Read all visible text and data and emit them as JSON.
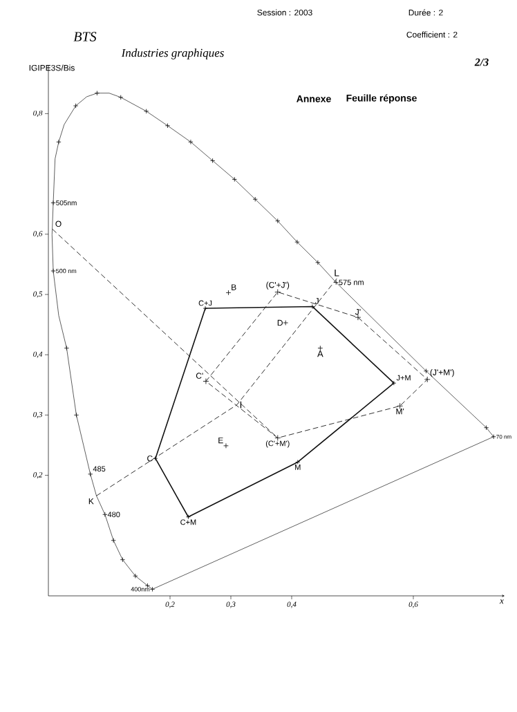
{
  "chart_data": {
    "type": "line",
    "title": "Annexe",
    "subtitle": "Feuille réponse",
    "xlabel": "x",
    "xlim": [
      0,
      0.75
    ],
    "ylim": [
      0,
      0.88
    ],
    "xticks": [
      {
        "value": 0.2,
        "label": "0,2"
      },
      {
        "value": 0.3,
        "label": "0,3"
      },
      {
        "value": 0.4,
        "label": "0,4"
      },
      {
        "value": 0.6,
        "label": "0,6"
      }
    ],
    "yticks": [
      {
        "value": 0.2,
        "label": "0,2"
      },
      {
        "value": 0.3,
        "label": "0,3"
      },
      {
        "value": 0.4,
        "label": "0,4"
      },
      {
        "value": 0.5,
        "label": "0,5"
      },
      {
        "value": 0.6,
        "label": "0,6"
      },
      {
        "value": 0.8,
        "label": "0,8"
      }
    ],
    "series": [
      {
        "type": "line",
        "color": "#1a1a1a",
        "line_style": "solid",
        "x": [
          0.171,
          0.163,
          0.143,
          0.122,
          0.107,
          0.093,
          0.079,
          0.069,
          0.046,
          0.03,
          0.017,
          0.008,
          0.006,
          0.008,
          0.011,
          0.017,
          0.026,
          0.045,
          0.063,
          0.08,
          0.1,
          0.119,
          0.161,
          0.196,
          0.234,
          0.27,
          0.306,
          0.34,
          0.377,
          0.409,
          0.443,
          0.473,
          0.621,
          0.72,
          0.732
        ],
        "values": [
          0.011,
          0.017,
          0.033,
          0.06,
          0.092,
          0.135,
          0.166,
          0.202,
          0.3,
          0.411,
          0.465,
          0.539,
          0.599,
          0.652,
          0.725,
          0.753,
          0.782,
          0.813,
          0.828,
          0.834,
          0.834,
          0.827,
          0.804,
          0.78,
          0.753,
          0.722,
          0.691,
          0.658,
          0.622,
          0.587,
          0.553,
          0.52,
          0.373,
          0.279,
          0.264
        ]
      },
      {
        "type": "line",
        "color": "#1a1a1a",
        "line_style": "solid",
        "x": [
          0.171,
          0.732
        ],
        "values": [
          0.011,
          0.264
        ]
      },
      {
        "type": "scatter",
        "color": "#1a1a1a",
        "marker": "cross",
        "x": [
          0.171,
          0.163,
          0.143,
          0.122,
          0.107,
          0.093,
          0.069,
          0.046,
          0.03,
          0.008,
          0.008,
          0.017,
          0.045,
          0.08,
          0.119,
          0.161,
          0.196,
          0.234,
          0.27,
          0.306,
          0.34,
          0.377,
          0.409,
          0.443,
          0.473,
          0.621,
          0.72,
          0.732
        ],
        "values": [
          0.011,
          0.017,
          0.033,
          0.06,
          0.092,
          0.135,
          0.202,
          0.3,
          0.411,
          0.539,
          0.652,
          0.753,
          0.813,
          0.834,
          0.827,
          0.804,
          0.78,
          0.753,
          0.722,
          0.691,
          0.658,
          0.622,
          0.587,
          0.553,
          0.52,
          0.373,
          0.279,
          0.264
        ]
      },
      {
        "type": "line",
        "color": "#111111",
        "line_style": "solid",
        "marker": "cross",
        "x": [
          0.176,
          0.258,
          0.434,
          0.568,
          0.41,
          0.23
        ],
        "values": [
          0.228,
          0.477,
          0.48,
          0.353,
          0.222,
          0.131
        ]
      },
      {
        "type": "line",
        "color": "#111111",
        "line_style": "solid",
        "x": [
          0.23,
          0.176
        ],
        "values": [
          0.131,
          0.228
        ]
      },
      {
        "type": "line",
        "color": "#1a1a1a",
        "line_style": "dashed",
        "marker": "cross",
        "x": [
          0.259,
          0.377,
          0.509,
          0.623,
          0.578,
          0.377
        ],
        "values": [
          0.356,
          0.504,
          0.462,
          0.359,
          0.315,
          0.262
        ]
      },
      {
        "type": "line",
        "color": "#1a1a1a",
        "line_style": "dashed",
        "x": [
          0.377,
          0.259
        ],
        "values": [
          0.262,
          0.356
        ]
      },
      {
        "type": "line",
        "color": "#1a1a1a",
        "line_style": "dashed",
        "x": [
          0.007,
          0.377
        ],
        "values": [
          0.608,
          0.262
        ]
      },
      {
        "type": "line",
        "color": "#1a1a1a",
        "line_style": "dashed",
        "x": [
          0.079,
          0.31,
          0.474
        ],
        "values": [
          0.166,
          0.317,
          0.526
        ]
      },
      {
        "type": "scatter",
        "color": "#1a1a1a",
        "marker": "cross",
        "x": [
          0.447,
          0.296,
          0.39,
          0.292
        ],
        "values": [
          0.411,
          0.503,
          0.453,
          0.249
        ]
      }
    ],
    "annotations": [
      {
        "text": "O",
        "x": 0.007,
        "y": 0.608
      },
      {
        "text": "K",
        "x": 0.079,
        "y": 0.166
      },
      {
        "text": "C",
        "x": 0.176,
        "y": 0.228
      },
      {
        "text": "C+J",
        "x": 0.258,
        "y": 0.477
      },
      {
        "text": "J",
        "x": 0.434,
        "y": 0.48
      },
      {
        "text": "J+M",
        "x": 0.568,
        "y": 0.353
      },
      {
        "text": "M",
        "x": 0.41,
        "y": 0.222
      },
      {
        "text": "C+M",
        "x": 0.23,
        "y": 0.131
      },
      {
        "text": "B",
        "x": 0.296,
        "y": 0.503
      },
      {
        "text": "D",
        "x": 0.39,
        "y": 0.453
      },
      {
        "text": "A",
        "x": 0.447,
        "y": 0.411
      },
      {
        "text": "E",
        "x": 0.292,
        "y": 0.249
      },
      {
        "text": "I",
        "x": 0.31,
        "y": 0.317
      },
      {
        "text": "C'",
        "x": 0.259,
        "y": 0.356
      },
      {
        "text": "(C'+J')",
        "x": 0.377,
        "y": 0.504
      },
      {
        "text": "J'",
        "x": 0.509,
        "y": 0.462
      },
      {
        "text": "(J'+M')",
        "x": 0.623,
        "y": 0.359
      },
      {
        "text": "M'",
        "x": 0.578,
        "y": 0.315
      },
      {
        "text": "(C'+M')",
        "x": 0.377,
        "y": 0.262
      },
      {
        "text": "L",
        "x": 0.474,
        "y": 0.526
      },
      {
        "text": "575 nm",
        "x": 0.473,
        "y": 0.52
      },
      {
        "text": "505nm",
        "x": 0.008,
        "y": 0.652
      },
      {
        "text": "500 nm",
        "x": 0.008,
        "y": 0.539
      },
      {
        "text": "485",
        "x": 0.069,
        "y": 0.202
      },
      {
        "text": "480",
        "x": 0.093,
        "y": 0.135
      },
      {
        "text": "400nm",
        "x": 0.171,
        "y": 0.011
      },
      {
        "text": "70 nm",
        "x": 0.732,
        "y": 0.264
      },
      "BTS",
      "Industries graphiques",
      "IGIPE3S/Bis",
      "Session : 2003",
      "Durée : 2",
      "Coefficient : 2",
      "2/3"
    ]
  }
}
